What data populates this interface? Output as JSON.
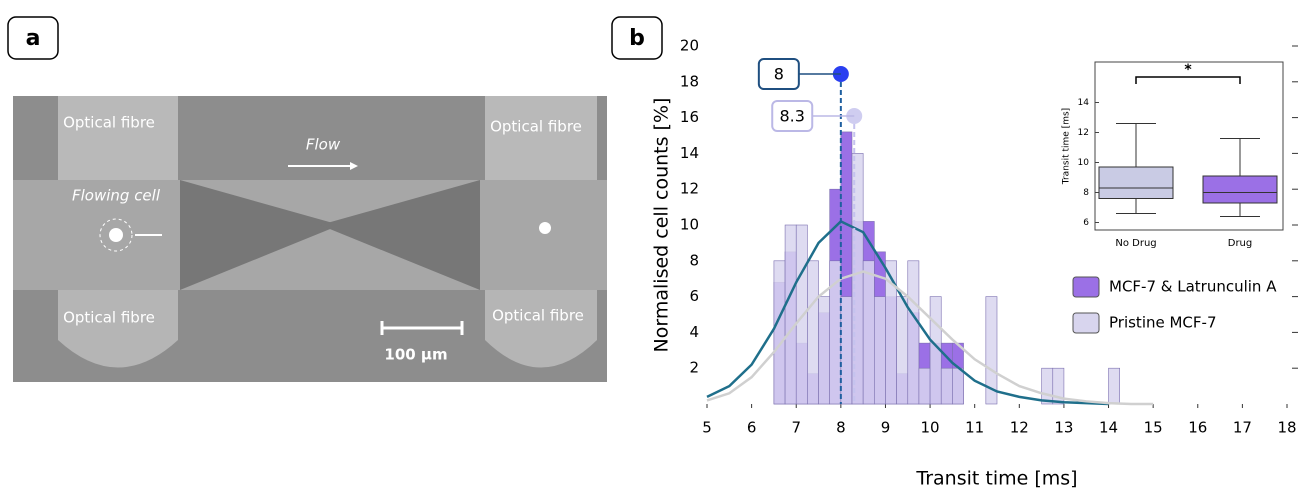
{
  "panel_a": {
    "label": "a",
    "texts": {
      "fibre_tl": "Optical fibre",
      "fibre_tr": "Optical fibre",
      "fibre_bl": "Optical fibre",
      "fibre_br": "Optical fibre",
      "flow": "Flow",
      "cell": "Flowing cell",
      "scale": "100 µm"
    }
  },
  "panel_b_label": "b",
  "chart_data": [
    {
      "type": "histogram",
      "x_label": "Transit time [ms]",
      "y_label": "Normalised cell counts [%]",
      "xlim": [
        5,
        18
      ],
      "xticks": [
        5,
        6,
        7,
        8,
        9,
        10,
        11,
        12,
        13,
        14,
        15,
        16,
        17,
        18
      ],
      "ylim": [
        0,
        20
      ],
      "yticks": [
        2,
        4,
        6,
        8,
        10,
        12,
        14,
        16,
        18,
        20
      ],
      "bins": [
        6.5,
        6.75,
        7,
        7.25,
        7.5,
        7.75,
        8,
        8.25,
        8.5,
        8.75,
        9,
        9.25,
        9.5,
        9.75,
        10,
        10.25,
        10.5,
        10.75,
        11,
        11.25,
        11.5,
        11.75,
        12,
        12.25,
        12.5,
        12.75,
        13,
        13.25,
        13.5,
        13.75,
        14,
        14.25
      ],
      "series": [
        {
          "name": "MCF-7 & Latrunculin A",
          "color": "#9b70e6",
          "values": [
            6.8,
            8.5,
            3.4,
            1.7,
            5.1,
            12.0,
            15.2,
            10.2,
            10.2,
            8.5,
            6.0,
            1.7,
            5.1,
            3.4,
            3.4,
            3.4,
            3.4,
            0,
            0,
            0,
            0,
            0,
            0,
            0,
            0,
            0,
            0,
            0,
            0,
            0,
            0
          ]
        },
        {
          "name": "Pristine MCF-7",
          "color": "#d8d5ee",
          "values": [
            8,
            10,
            10,
            8,
            6,
            8,
            6,
            14,
            8,
            6,
            8,
            6,
            8,
            2,
            6,
            2,
            2,
            0,
            0,
            6,
            0,
            0,
            0,
            0,
            2,
            2,
            0,
            0,
            0,
            0,
            2
          ]
        }
      ],
      "curves": [
        {
          "color": "#1f6f8b",
          "x": [
            5,
            5.5,
            6,
            6.5,
            7,
            7.5,
            8,
            8.5,
            9,
            9.5,
            10,
            10.5,
            11,
            11.5,
            12,
            12.5,
            13,
            13.5,
            14
          ],
          "values": [
            0.4,
            1.0,
            2.2,
            4.2,
            6.8,
            9.0,
            10.2,
            9.6,
            7.6,
            5.4,
            3.6,
            2.3,
            1.3,
            0.7,
            0.4,
            0.2,
            0.1,
            0.05,
            0
          ]
        },
        {
          "color": "#d0d0d0",
          "x": [
            5,
            5.5,
            6,
            6.5,
            7,
            7.5,
            8,
            8.5,
            9,
            9.5,
            10,
            10.5,
            11,
            11.5,
            12,
            12.5,
            13,
            13.5,
            14,
            14.5,
            15
          ],
          "values": [
            0.2,
            0.6,
            1.5,
            2.9,
            4.5,
            6.0,
            7.0,
            7.4,
            7.0,
            6.0,
            4.8,
            3.6,
            2.5,
            1.7,
            1.0,
            0.6,
            0.3,
            0.15,
            0.05,
            0,
            0
          ]
        }
      ],
      "markers": [
        {
          "value": 8,
          "color": "#2a3ff0"
        },
        {
          "value": 8.3,
          "color": "#cfcdf0"
        }
      ],
      "legend": "right"
    },
    {
      "type": "box",
      "y_label": "Transit time [ms]",
      "categories": [
        "No Drug",
        "Drug"
      ],
      "ylim": [
        5.5,
        16.7
      ],
      "yticks": [
        6,
        8,
        10,
        12,
        14
      ],
      "boxes": [
        {
          "min": 6.6,
          "q1": 7.6,
          "median": 8.3,
          "q3": 9.7,
          "max": 12.6,
          "color": "#c9cbe4"
        },
        {
          "min": 6.4,
          "q1": 7.3,
          "median": 8.0,
          "q3": 9.1,
          "max": 11.6,
          "color": "#9b70e6"
        }
      ],
      "significance": "*"
    }
  ]
}
